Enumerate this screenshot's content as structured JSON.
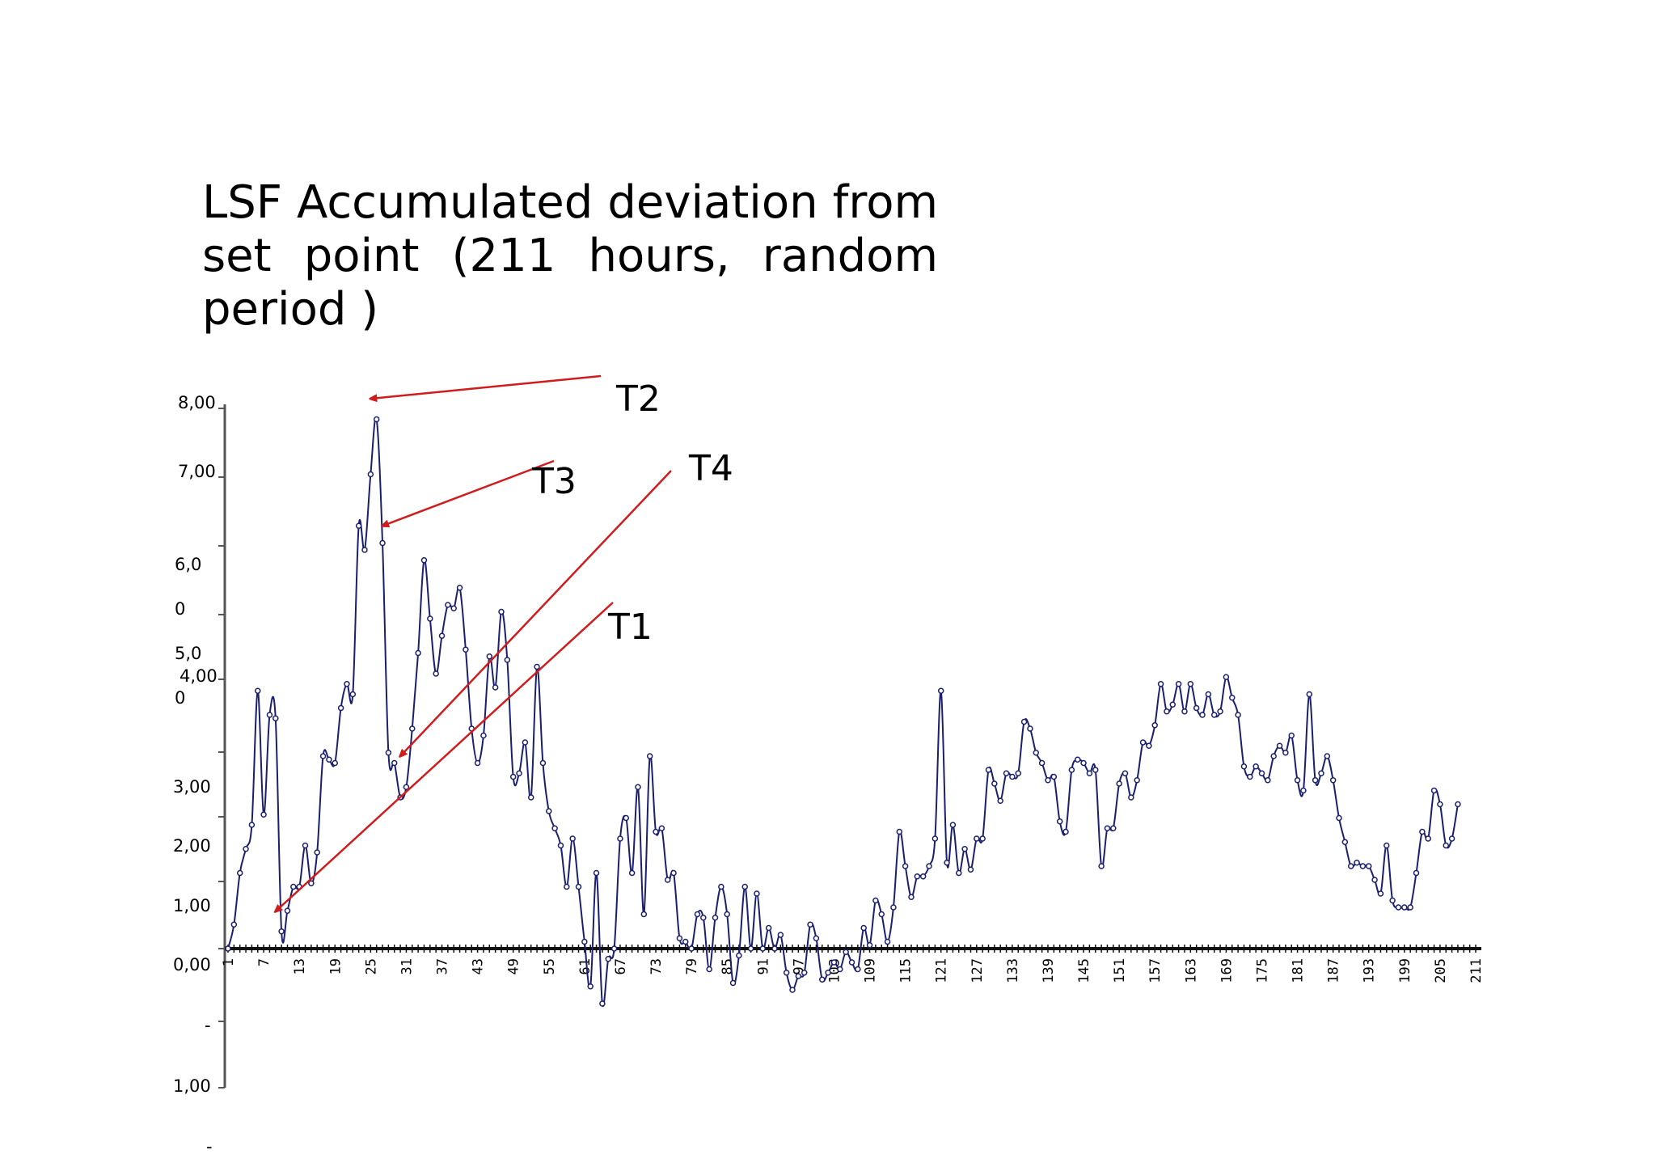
{
  "chart_data": {
    "type": "line",
    "title": "LSF Accumulated deviation from set point (211 hours, random period )",
    "xlabel": "",
    "ylabel": "",
    "ylim": [
      -2,
      8
    ],
    "xlim": [
      1,
      211
    ],
    "grid": false,
    "x_tick_labels": [
      "1",
      "7",
      "13",
      "19",
      "25",
      "31",
      "37",
      "43",
      "49",
      "55",
      "61",
      "67",
      "73",
      "79",
      "85",
      "91",
      "97",
      "103",
      "109",
      "115",
      "121",
      "127",
      "133",
      "139",
      "145",
      "151",
      "157",
      "163",
      "169",
      "175",
      "181",
      "187",
      "193",
      "199",
      "205",
      "211"
    ],
    "y_tick_labels": [
      "8,00",
      "7,00",
      "6,0",
      "0",
      "5,0",
      "4,00",
      "0",
      "3,00",
      "2,00",
      "1,00",
      "0,00",
      "-",
      "1,00",
      "-"
    ],
    "series": [
      {
        "values": [
          0.0,
          0.35,
          1.1,
          1.45,
          1.8,
          3.75,
          1.95,
          3.4,
          3.35,
          0.25,
          0.55,
          0.9,
          0.9,
          1.5,
          0.95,
          1.4,
          2.8,
          2.75,
          2.7,
          3.5,
          3.85,
          3.7,
          6.15,
          5.8,
          6.9,
          7.7,
          5.9,
          2.85,
          2.7,
          2.2,
          2.35,
          3.2,
          4.3,
          5.65,
          4.8,
          4.0,
          4.55,
          5.0,
          4.95,
          5.25,
          4.35,
          3.2,
          2.7,
          3.1,
          4.25,
          3.8,
          4.9,
          4.2,
          2.5,
          2.55,
          3.0,
          2.2,
          4.1,
          2.7,
          2.0,
          1.75,
          1.5,
          0.9,
          1.6,
          0.9,
          0.1,
          -0.55,
          1.1,
          -0.8,
          -0.15,
          0.0,
          1.6,
          1.9,
          1.1,
          2.35,
          0.5,
          2.8,
          1.7,
          1.75,
          1.0,
          1.1,
          0.15,
          0.1,
          0.0,
          0.5,
          0.45,
          -0.3,
          0.45,
          0.9,
          0.5,
          -0.5,
          -0.1,
          0.9,
          0.0,
          0.8,
          0.0,
          0.3,
          0.0,
          0.2,
          -0.35,
          -0.6,
          -0.4,
          -0.35,
          0.35,
          0.15,
          -0.45,
          -0.35,
          -0.2,
          -0.3,
          -0.05,
          -0.2,
          -0.3,
          0.3,
          0.05,
          0.7,
          0.5,
          0.1,
          0.6,
          1.7,
          1.2,
          0.75,
          1.05,
          1.05,
          1.2,
          1.6,
          3.75,
          1.25,
          1.8,
          1.1,
          1.45,
          1.15,
          1.6,
          1.6,
          2.6,
          2.4,
          2.15,
          2.55,
          2.5,
          2.55,
          3.3,
          3.2,
          2.85,
          2.7,
          2.45,
          2.5,
          1.85,
          1.7,
          2.6,
          2.75,
          2.7,
          2.55,
          2.6,
          1.2,
          1.75,
          1.75,
          2.4,
          2.55,
          2.2,
          2.45,
          3.0,
          2.95,
          3.25,
          3.85,
          3.45,
          3.55,
          3.85,
          3.45,
          3.85,
          3.5,
          3.4,
          3.7,
          3.4,
          3.45,
          3.95,
          3.65,
          3.4,
          2.65,
          2.5,
          2.65,
          2.55,
          2.45,
          2.8,
          2.95,
          2.85,
          3.1,
          2.45,
          2.3,
          3.7,
          2.45,
          2.55,
          2.8,
          2.45,
          1.9,
          1.55,
          1.2,
          1.25,
          1.2,
          1.2,
          1.0,
          0.8,
          1.5,
          0.7,
          0.6,
          0.6,
          0.6,
          1.1,
          1.7,
          1.6,
          2.3,
          2.1,
          1.5,
          1.6,
          2.1
        ]
      }
    ],
    "annotations": [
      {
        "label": "T1",
        "target_x": 9,
        "target_y": 0.6
      },
      {
        "label": "T2",
        "target_x": 25,
        "target_y": 8.0
      },
      {
        "label": "T3",
        "target_x": 27,
        "target_y": 6.15
      },
      {
        "label": "T4",
        "target_x": 30,
        "target_y": 2.8
      }
    ],
    "line_color": "#1a1f6e",
    "arrow_color": "#d01c1c"
  }
}
